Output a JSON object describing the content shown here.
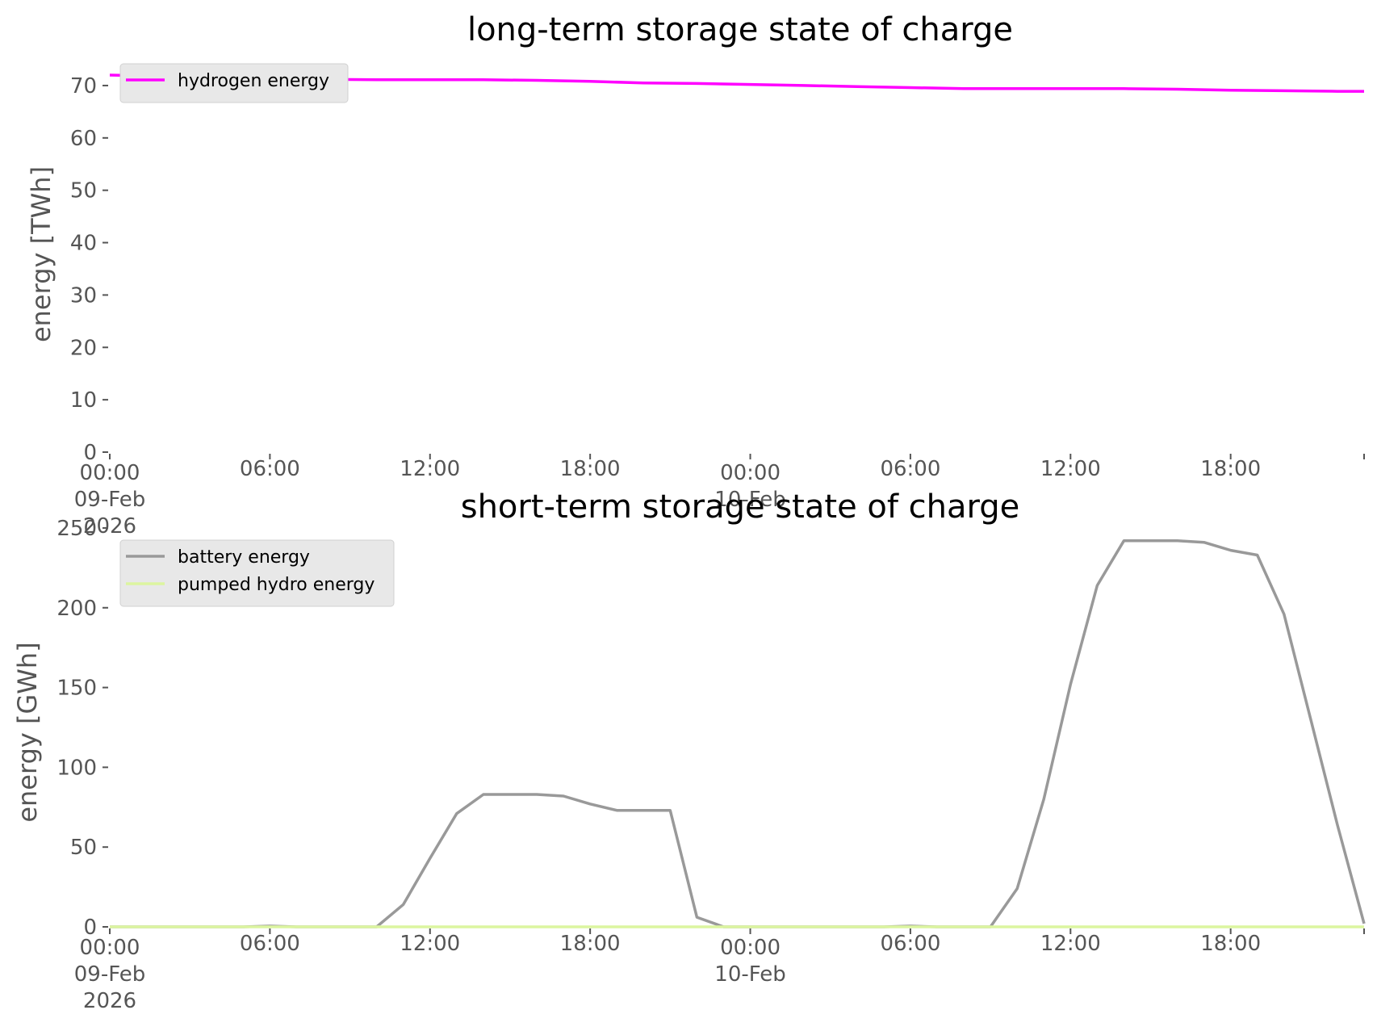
{
  "chart_data": [
    {
      "type": "line",
      "title": "long-term storage state of charge",
      "xlabel": "",
      "ylabel": "energy [TWh]",
      "ylim": [
        0,
        74
      ],
      "yticks": [
        0,
        10,
        20,
        30,
        40,
        50,
        60,
        70
      ],
      "xticks": [
        {
          "hour": 0,
          "label": [
            "00:00",
            "09-Feb",
            "2026"
          ]
        },
        {
          "hour": 6,
          "label": [
            "06:00"
          ]
        },
        {
          "hour": 12,
          "label": [
            "12:00"
          ]
        },
        {
          "hour": 18,
          "label": [
            "18:00"
          ]
        },
        {
          "hour": 24,
          "label": [
            "00:00",
            "10-Feb"
          ]
        },
        {
          "hour": 30,
          "label": [
            "06:00"
          ]
        },
        {
          "hour": 36,
          "label": [
            "12:00"
          ]
        },
        {
          "hour": 42,
          "label": [
            "18:00"
          ]
        },
        {
          "hour": 47,
          "label": []
        }
      ],
      "grid": false,
      "legend": "top-left",
      "x_hours": [
        0,
        2,
        4,
        6,
        8,
        10,
        12,
        14,
        16,
        18,
        20,
        22,
        24,
        26,
        28,
        30,
        32,
        34,
        36,
        38,
        40,
        42,
        44,
        46,
        47
      ],
      "series": [
        {
          "name": "hydrogen energy",
          "color": "#ff00ff",
          "values": [
            72.0,
            71.8,
            71.6,
            71.4,
            71.2,
            71.1,
            71.1,
            71.1,
            71.0,
            70.8,
            70.5,
            70.4,
            70.2,
            70.0,
            69.8,
            69.6,
            69.4,
            69.4,
            69.4,
            69.4,
            69.3,
            69.1,
            69.0,
            68.9,
            68.9
          ]
        }
      ]
    },
    {
      "type": "line",
      "title": "short-term storage state of charge",
      "xlabel": "",
      "ylabel": "energy [GWh]",
      "ylim": [
        0,
        252
      ],
      "yticks": [
        0,
        50,
        100,
        150,
        200,
        250
      ],
      "xticks": [
        {
          "hour": 0,
          "label": [
            "00:00",
            "09-Feb",
            "2026"
          ]
        },
        {
          "hour": 6,
          "label": [
            "06:00"
          ]
        },
        {
          "hour": 12,
          "label": [
            "12:00"
          ]
        },
        {
          "hour": 18,
          "label": [
            "18:00"
          ]
        },
        {
          "hour": 24,
          "label": [
            "00:00",
            "10-Feb"
          ]
        },
        {
          "hour": 30,
          "label": [
            "06:00"
          ]
        },
        {
          "hour": 36,
          "label": [
            "12:00"
          ]
        },
        {
          "hour": 42,
          "label": [
            "18:00"
          ]
        },
        {
          "hour": 47,
          "label": []
        }
      ],
      "grid": false,
      "legend": "top-left",
      "x_hours": [
        0,
        1,
        2,
        3,
        4,
        5,
        6,
        7,
        8,
        9,
        10,
        11,
        12,
        13,
        14,
        15,
        16,
        17,
        18,
        19,
        20,
        21,
        22,
        23,
        24,
        25,
        26,
        27,
        28,
        29,
        30,
        31,
        32,
        33,
        34,
        35,
        36,
        37,
        38,
        39,
        40,
        41,
        42,
        43,
        44,
        45,
        46,
        47
      ],
      "series": [
        {
          "name": "battery energy",
          "color": "#999999",
          "values": [
            0,
            0,
            0,
            0,
            0,
            0,
            0.5,
            0,
            0,
            0,
            0,
            14,
            43,
            71,
            83,
            83,
            83,
            82,
            77,
            73,
            73,
            73,
            6,
            0,
            0,
            0,
            0,
            0,
            0,
            0,
            0.5,
            0,
            0,
            0,
            24,
            80,
            152,
            214,
            242,
            242,
            242,
            241,
            236,
            233,
            196,
            130,
            64,
            2
          ]
        },
        {
          "name": "pumped hydro energy",
          "color": "#dcf5a0",
          "values": [
            0,
            0,
            0,
            0,
            0,
            0,
            0,
            0,
            0,
            0,
            0,
            0,
            0,
            0,
            0,
            0,
            0,
            0,
            0,
            0,
            0,
            0,
            0,
            0,
            0,
            0,
            0,
            0,
            0,
            0,
            0,
            0,
            0,
            0,
            0,
            0,
            0,
            0,
            0,
            0,
            0,
            0,
            0,
            0,
            0,
            0,
            0,
            0
          ]
        }
      ]
    }
  ]
}
